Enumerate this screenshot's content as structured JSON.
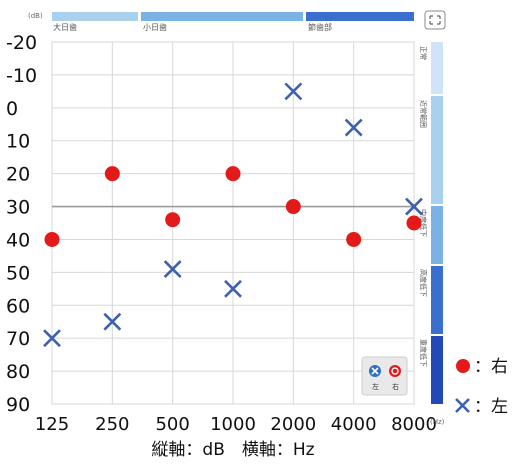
{
  "chart_data": {
    "type": "scatter",
    "x_categories": [
      "125",
      "250",
      "500",
      "1000",
      "2000",
      "4000",
      "8000"
    ],
    "y_ticks": [
      -20,
      -10,
      0,
      10,
      20,
      30,
      40,
      50,
      60,
      70,
      80,
      90
    ],
    "ylim": [
      -20,
      90
    ],
    "y_inverted": true,
    "grid": true,
    "reference_line_y": 30,
    "series": [
      {
        "name": "右",
        "marker": "circle",
        "color": "#e41a1a",
        "values": [
          40,
          20,
          34,
          20,
          30,
          40,
          35
        ]
      },
      {
        "name": "左",
        "marker": "x",
        "color": "#3f5fb0",
        "values": [
          70,
          65,
          49,
          55,
          -5,
          6,
          30
        ]
      }
    ],
    "xlabel": "縦軸：dB　横軸：Hz",
    "y_unit": "(dB)",
    "x_unit": "(Hz)"
  },
  "top_bands": [
    "大日歯",
    "小日歯",
    "節歯部"
  ],
  "side_bands": [
    "正常",
    "近常範囲",
    "中度低下",
    "高度低下",
    "重度低下"
  ],
  "mini_legend": {
    "left": "左",
    "right": "右"
  },
  "legend": {
    "right_label": "：右",
    "left_label": "：左"
  },
  "colors": {
    "right": "#e41a1a",
    "left": "#3f5fb0",
    "band_light": "#a9d0ef",
    "band_mid": "#7ab2e3",
    "band_dark": "#3a6fd0",
    "band_darker": "#2348b8"
  }
}
